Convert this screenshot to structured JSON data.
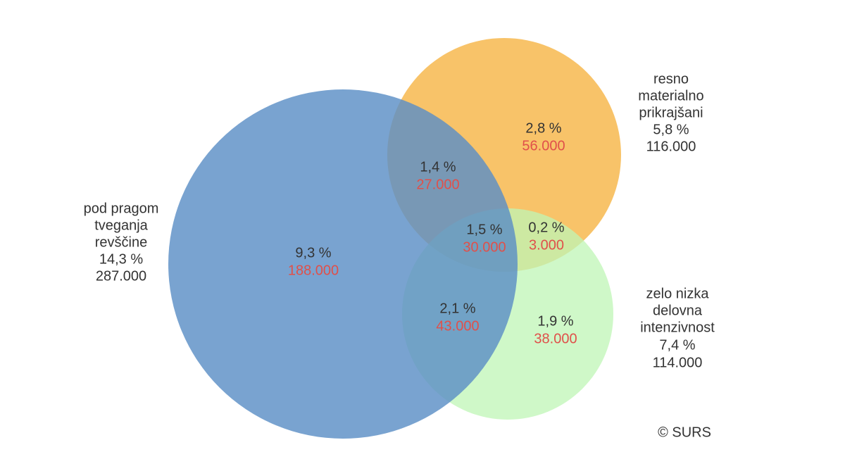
{
  "sets": [
    {
      "label": [
        "pod pragom",
        "tveganja",
        "revščine"
      ],
      "percent": "14,3 %",
      "count": "287.000"
    },
    {
      "label": [
        "resno",
        "materialno",
        "prikrajšani"
      ],
      "percent": "5,8 %",
      "count": "116.000"
    },
    {
      "label": [
        "zelo nizka",
        "delovna",
        "intenzivnost"
      ],
      "percent": "7,4 %",
      "count": "114.000"
    }
  ],
  "regions": [
    {
      "percent": "9,3 %",
      "count": "188.000"
    },
    {
      "percent": "1,4 %",
      "count": "27.000"
    },
    {
      "percent": "2,8 %",
      "count": "56.000"
    },
    {
      "percent": "1,5 %",
      "count": "30.000"
    },
    {
      "percent": "0,2 %",
      "count": "3.000"
    },
    {
      "percent": "2,1 %",
      "count": "43.000"
    },
    {
      "percent": "1,9 %",
      "count": "38.000"
    }
  ],
  "source": "© SURS"
}
